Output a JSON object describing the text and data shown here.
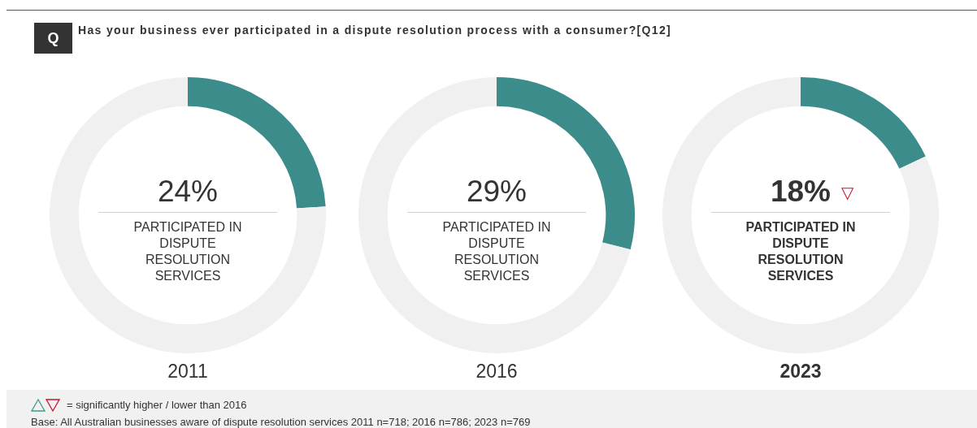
{
  "chart_data": [
    {
      "type": "other",
      "title": "Has your business ever participated in a dispute resolution process with a consumer?[Q12]",
      "annotations": [
        "Q",
        "= significantly higher / lower than 2016",
        "Base: All Australian businesses aware of dispute resolution services 2011 n=718; 2016 n=786; 2023 n=769"
      ]
    },
    {
      "type": "donut",
      "xlabel": "2011",
      "categories": [
        null,
        null
      ],
      "values": [
        24,
        76
      ],
      "colors": [
        "#3d8c8c",
        "#f0f0f0"
      ],
      "value_labels": [
        "24%",
        null
      ],
      "annotations": [
        "PARTICIPATED IN DISPUTE RESOLUTION SERVICES"
      ]
    },
    {
      "type": "donut",
      "xlabel": "2016",
      "categories": [
        null,
        null
      ],
      "values": [
        29,
        71
      ],
      "colors": [
        "#3d8c8c",
        "#f0f0f0"
      ],
      "value_labels": [
        "29%",
        null
      ],
      "annotations": [
        "PARTICIPATED IN DISPUTE RESOLUTION SERVICES"
      ]
    },
    {
      "type": "donut",
      "xlabel": "2023",
      "categories": [
        null,
        null
      ],
      "values": [
        18,
        82
      ],
      "colors": [
        "#3d8c8c",
        "#f0f0f0"
      ],
      "value_labels": [
        "18%",
        null
      ],
      "annotations": [
        "PARTICIPATED IN DISPUTE RESOLUTION SERVICES",
        "▽"
      ]
    }
  ]
}
